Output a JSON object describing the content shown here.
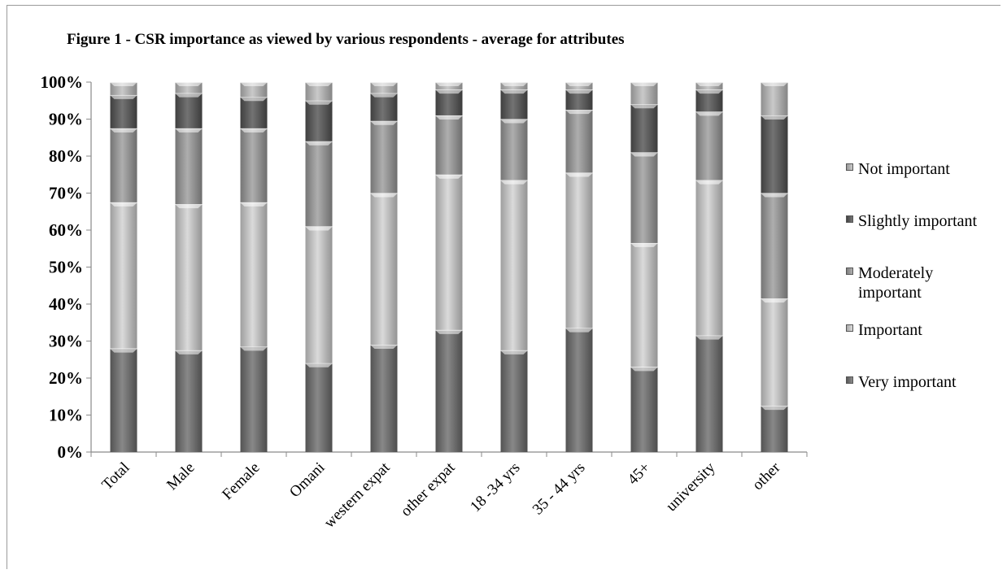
{
  "chart_data": {
    "type": "bar",
    "stacked": true,
    "percent": true,
    "title": "Figure 1 - CSR importance as viewed by various respondents - average for attributes",
    "xlabel": "",
    "ylabel": "",
    "ylim": [
      0,
      100
    ],
    "y_ticks": [
      "0%",
      "10%",
      "20%",
      "30%",
      "40%",
      "50%",
      "60%",
      "70%",
      "80%",
      "90%",
      "100%"
    ],
    "categories": [
      "Total",
      "Male",
      "Female",
      "Omani",
      "western expat",
      "other expat",
      "18 -34 yrs",
      "35 - 44 yrs",
      "45+",
      "university",
      "other"
    ],
    "series": [
      {
        "name": "Very important",
        "color": "#6e6e6e",
        "values": [
          28,
          27.5,
          28.5,
          24,
          29,
          33,
          27.5,
          33.5,
          23,
          31.5,
          12.5
        ]
      },
      {
        "name": "Important",
        "color": "#d2d2d2",
        "values": [
          39.5,
          39.5,
          39,
          37,
          41,
          42,
          46,
          42,
          33.5,
          42,
          29
        ]
      },
      {
        "name": "Moderately important",
        "color": "#9c9c9c",
        "values": [
          20,
          20.5,
          20,
          23,
          19.5,
          16,
          16.5,
          17,
          24.5,
          18.5,
          28.5
        ]
      },
      {
        "name": "Slightly important",
        "color": "#545454",
        "values": [
          9,
          9.5,
          8.5,
          11,
          7.5,
          7,
          8,
          5.5,
          13,
          6,
          21
        ]
      },
      {
        "name": "Not important",
        "color": "#bdbdbd",
        "values": [
          3.5,
          3,
          4,
          5,
          3,
          2,
          2,
          2,
          6,
          2,
          9
        ]
      }
    ],
    "legend": {
      "placement": "right",
      "order": [
        "Not important",
        "Slightly important",
        "Moderately\nimportant",
        "Important",
        "Very important"
      ]
    },
    "grid": false
  }
}
